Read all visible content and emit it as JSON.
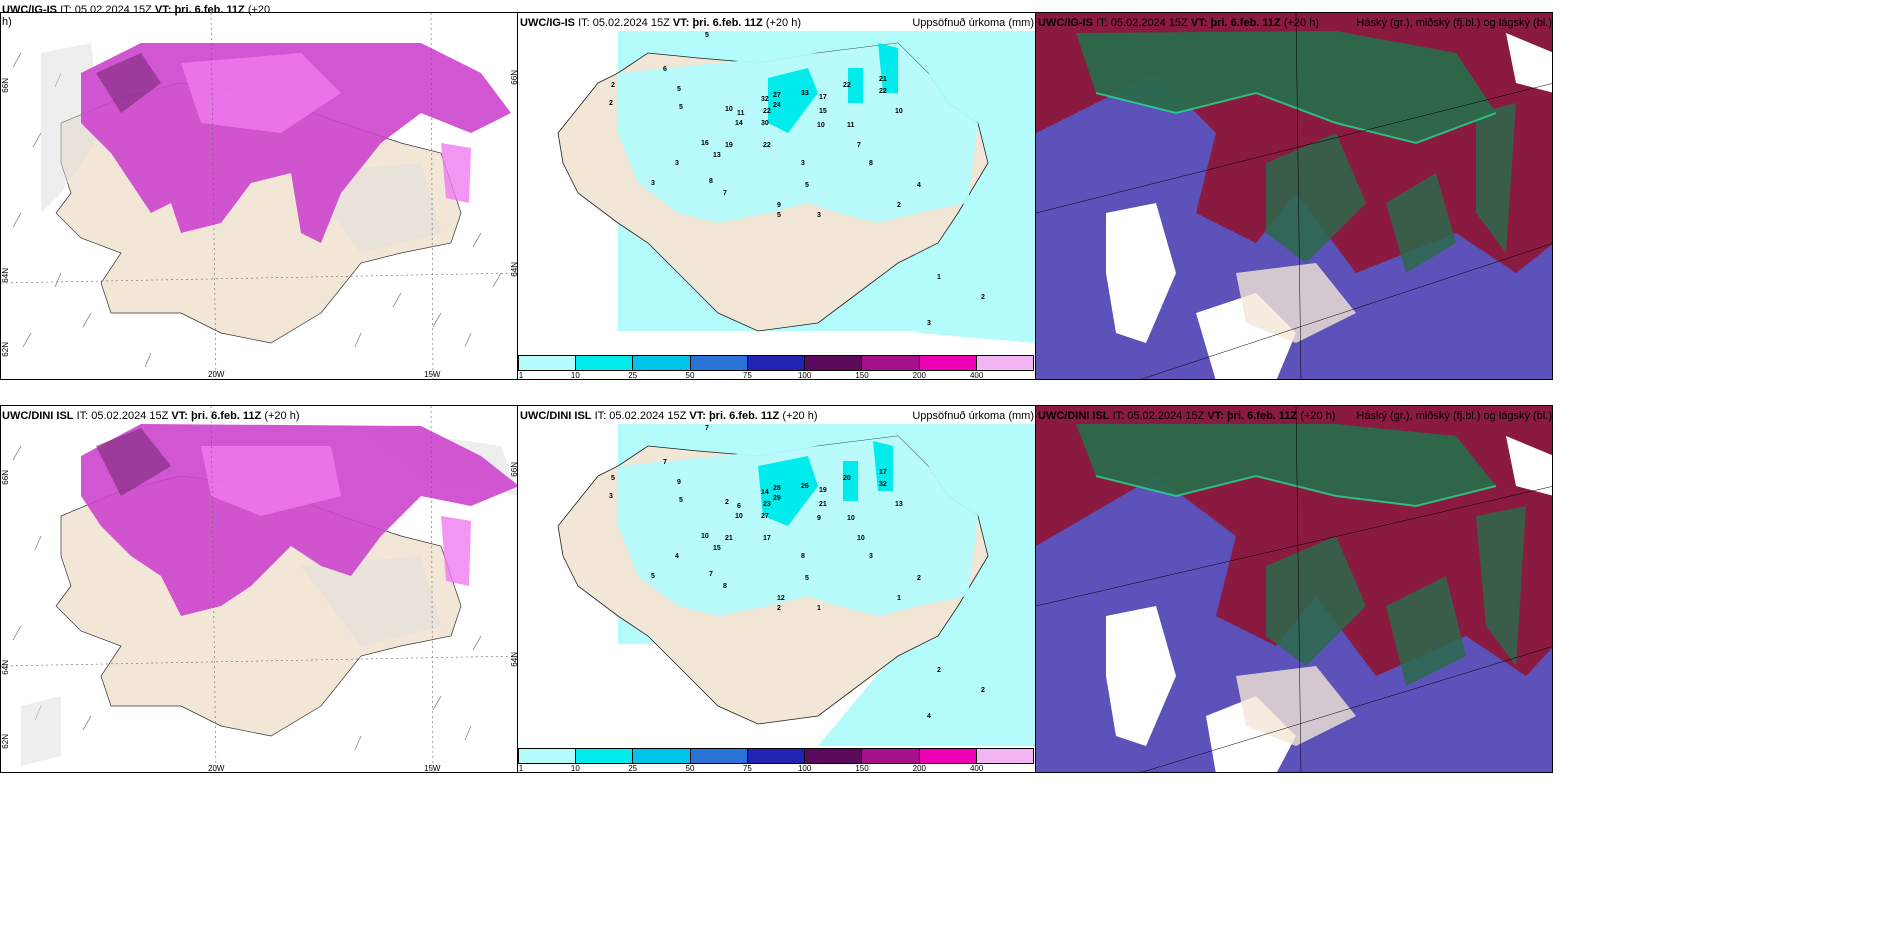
{
  "rows": [
    {
      "model": "UWC/IG-IS",
      "left_header": {
        "it_label": "IT:",
        "it_value": "05.02.2024 15Z",
        "vt_label": "VT:",
        "vt_value": "þri. 6.feb. 11Z",
        "lead": "(+20",
        "lead2": "h)"
      },
      "mid_header": {
        "it_label": "IT:",
        "it_value": "05.02.2024 15Z",
        "vt_label": "VT:",
        "vt_value": "þri. 6.feb. 11Z",
        "lead": "(+20 h)",
        "right": "Uppsöfnuð úrkoma (mm)"
      },
      "right_header": {
        "it_label": "IT:",
        "it_value": "05.02.2024 15Z",
        "vt_label": "VT:",
        "vt_value": "þri. 6.feb. 11Z",
        "lead": "(+20 h)",
        "right": "Háský (gr.), miðský (fj.bl.) og lágský (bl.)"
      },
      "axis": {
        "lat_top": "66N",
        "lat_mid": "64N",
        "lat_bot": "62N",
        "lon_a": "20W",
        "lon_b": "15W",
        "right_a": "66N",
        "right_b": "64N"
      },
      "precip_labels": [
        "5",
        "6",
        "2",
        "2",
        "5",
        "5",
        "10",
        "11",
        "14",
        "32",
        "27",
        "24",
        "22",
        "30",
        "33",
        "17",
        "22",
        "15",
        "21",
        "22",
        "10",
        "16",
        "19",
        "13",
        "22",
        "11",
        "10",
        "3",
        "3",
        "8",
        "7",
        "7",
        "8",
        "3",
        "9",
        "5",
        "5",
        "3",
        "1",
        "2",
        "3",
        "4",
        "2"
      ]
    },
    {
      "model": "UWC/DINI ISL",
      "left_header": {
        "it_label": "IT:",
        "it_value": "05.02.2024 15Z",
        "vt_label": "VT:",
        "vt_value": "þri. 6.feb. 11Z",
        "lead": "(+20 h)"
      },
      "mid_header": {
        "it_label": "IT:",
        "it_value": "05.02.2024 15Z",
        "vt_label": "VT:",
        "vt_value": "þri. 6.feb. 11Z",
        "lead": "(+20 h)",
        "right": "Uppsöfnuð úrkoma (mm)"
      },
      "right_header": {
        "it_label": "IT:",
        "it_value": "05.02.2024 15Z",
        "vt_label": "VT:",
        "vt_value": "þri. 6.feb. 11Z",
        "lead": "(+20 h)",
        "right": "Háský (gr.), miðský (fj.bl.) og lágský (bl.)"
      },
      "axis": {
        "lat_top": "66N",
        "lat_mid": "64N",
        "lat_bot": "62N",
        "lon_a": "20W",
        "lon_b": "15W",
        "right_a": "66N",
        "right_b": "64N"
      },
      "precip_labels": [
        "7",
        "7",
        "5",
        "3",
        "9",
        "5",
        "2",
        "6",
        "10",
        "14",
        "28",
        "29",
        "23",
        "27",
        "26",
        "19",
        "20",
        "21",
        "17",
        "32",
        "13",
        "10",
        "21",
        "15",
        "17",
        "10",
        "9",
        "4",
        "5",
        "7",
        "8",
        "10",
        "3",
        "8",
        "12",
        "5",
        "2",
        "1",
        "2",
        "2",
        "4",
        "2",
        "1"
      ]
    }
  ],
  "colorbar": {
    "ticks": [
      "1",
      "10",
      "25",
      "50",
      "75",
      "100",
      "150",
      "200",
      "400"
    ],
    "colors": [
      "#b4fcfc",
      "#00ecec",
      "#00c4e8",
      "#2a73d8",
      "#2222b4",
      "#5c0a5c",
      "#a6108a",
      "#f000b4",
      "#f2b4f2"
    ]
  },
  "colors": {
    "land": "#f2e6d6",
    "sea": "#ffffff",
    "precip_light": "#b4fcfc",
    "snow_purple": "#cc44cc",
    "snow_pink": "#f07af0",
    "cloud_high": "#2a6a4a",
    "cloud_mid": "#8a1a40",
    "cloud_low": "#5858c8"
  }
}
